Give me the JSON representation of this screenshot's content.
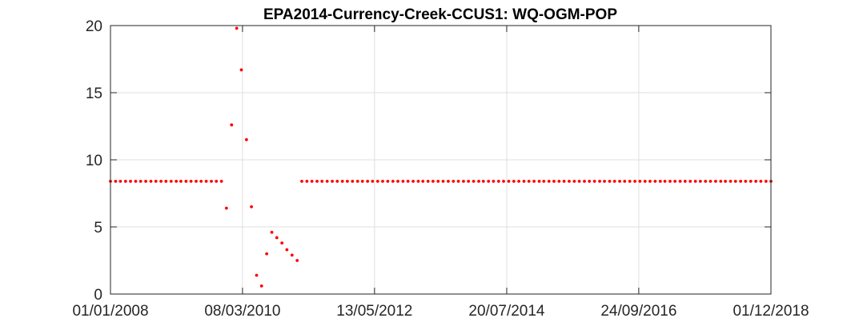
{
  "chart_data": {
    "type": "scatter",
    "title": "EPA2014-Currency-Creek-CCUS1: WQ-OGM-POP",
    "xlabel": "",
    "ylabel": "",
    "x_axis_type": "date",
    "xlim": [
      "2008-01-01",
      "2018-12-01"
    ],
    "ylim": [
      0,
      20
    ],
    "x_ticks": [
      "01/01/2008",
      "08/03/2010",
      "13/05/2012",
      "20/07/2014",
      "24/09/2016",
      "01/12/2018"
    ],
    "y_ticks": [
      0,
      5,
      10,
      15,
      20
    ],
    "grid": true,
    "marker_color": "#ff0000",
    "series": [
      {
        "values": [
          [
            "2008-01-01",
            8.4
          ],
          [
            "2008-02-01",
            8.4
          ],
          [
            "2008-03-01",
            8.4
          ],
          [
            "2008-04-01",
            8.4
          ],
          [
            "2008-05-01",
            8.4
          ],
          [
            "2008-06-01",
            8.4
          ],
          [
            "2008-07-01",
            8.4
          ],
          [
            "2008-08-01",
            8.4
          ],
          [
            "2008-09-01",
            8.4
          ],
          [
            "2008-10-01",
            8.4
          ],
          [
            "2008-11-01",
            8.4
          ],
          [
            "2008-12-01",
            8.4
          ],
          [
            "2009-01-01",
            8.4
          ],
          [
            "2009-02-01",
            8.4
          ],
          [
            "2009-03-01",
            8.4
          ],
          [
            "2009-04-01",
            8.4
          ],
          [
            "2009-05-01",
            8.4
          ],
          [
            "2009-06-01",
            8.4
          ],
          [
            "2009-07-01",
            8.4
          ],
          [
            "2009-08-01",
            8.4
          ],
          [
            "2009-09-01",
            8.4
          ],
          [
            "2009-10-01",
            8.4
          ],
          [
            "2009-11-01",
            8.4
          ],
          [
            "2009-12-01",
            6.4
          ],
          [
            "2010-01-01",
            12.6
          ],
          [
            "2010-02-01",
            19.8
          ],
          [
            "2010-03-01",
            16.7
          ],
          [
            "2010-04-01",
            11.5
          ],
          [
            "2010-05-01",
            6.5
          ],
          [
            "2010-06-01",
            1.4
          ],
          [
            "2010-07-01",
            0.6
          ],
          [
            "2010-08-01",
            3.0
          ],
          [
            "2010-09-01",
            4.6
          ],
          [
            "2010-10-01",
            4.2
          ],
          [
            "2010-11-01",
            3.8
          ],
          [
            "2010-12-01",
            3.3
          ],
          [
            "2011-01-01",
            2.9
          ],
          [
            "2011-02-01",
            2.5
          ],
          [
            "2011-03-01",
            8.4
          ],
          [
            "2011-04-01",
            8.4
          ],
          [
            "2011-05-01",
            8.4
          ],
          [
            "2011-06-01",
            8.4
          ],
          [
            "2011-07-01",
            8.4
          ],
          [
            "2011-08-01",
            8.4
          ],
          [
            "2011-09-01",
            8.4
          ],
          [
            "2011-10-01",
            8.4
          ],
          [
            "2011-11-01",
            8.4
          ],
          [
            "2011-12-01",
            8.4
          ],
          [
            "2012-01-01",
            8.4
          ],
          [
            "2012-02-01",
            8.4
          ],
          [
            "2012-03-01",
            8.4
          ],
          [
            "2012-04-01",
            8.4
          ],
          [
            "2012-05-01",
            8.4
          ],
          [
            "2012-06-01",
            8.4
          ],
          [
            "2012-07-01",
            8.4
          ],
          [
            "2012-08-01",
            8.4
          ],
          [
            "2012-09-01",
            8.4
          ],
          [
            "2012-10-01",
            8.4
          ],
          [
            "2012-11-01",
            8.4
          ],
          [
            "2012-12-01",
            8.4
          ],
          [
            "2013-01-01",
            8.4
          ],
          [
            "2013-02-01",
            8.4
          ],
          [
            "2013-03-01",
            8.4
          ],
          [
            "2013-04-01",
            8.4
          ],
          [
            "2013-05-01",
            8.4
          ],
          [
            "2013-06-01",
            8.4
          ],
          [
            "2013-07-01",
            8.4
          ],
          [
            "2013-08-01",
            8.4
          ],
          [
            "2013-09-01",
            8.4
          ],
          [
            "2013-10-01",
            8.4
          ],
          [
            "2013-11-01",
            8.4
          ],
          [
            "2013-12-01",
            8.4
          ],
          [
            "2014-01-01",
            8.4
          ],
          [
            "2014-02-01",
            8.4
          ],
          [
            "2014-03-01",
            8.4
          ],
          [
            "2014-04-01",
            8.4
          ],
          [
            "2014-05-01",
            8.4
          ],
          [
            "2014-06-01",
            8.4
          ],
          [
            "2014-07-01",
            8.4
          ],
          [
            "2014-08-01",
            8.4
          ],
          [
            "2014-09-01",
            8.4
          ],
          [
            "2014-10-01",
            8.4
          ],
          [
            "2014-11-01",
            8.4
          ],
          [
            "2014-12-01",
            8.4
          ],
          [
            "2015-01-01",
            8.4
          ],
          [
            "2015-02-01",
            8.4
          ],
          [
            "2015-03-01",
            8.4
          ],
          [
            "2015-04-01",
            8.4
          ],
          [
            "2015-05-01",
            8.4
          ],
          [
            "2015-06-01",
            8.4
          ],
          [
            "2015-07-01",
            8.4
          ],
          [
            "2015-08-01",
            8.4
          ],
          [
            "2015-09-01",
            8.4
          ],
          [
            "2015-10-01",
            8.4
          ],
          [
            "2015-11-01",
            8.4
          ],
          [
            "2015-12-01",
            8.4
          ],
          [
            "2016-01-01",
            8.4
          ],
          [
            "2016-02-01",
            8.4
          ],
          [
            "2016-03-01",
            8.4
          ],
          [
            "2016-04-01",
            8.4
          ],
          [
            "2016-05-01",
            8.4
          ],
          [
            "2016-06-01",
            8.4
          ],
          [
            "2016-07-01",
            8.4
          ],
          [
            "2016-08-01",
            8.4
          ],
          [
            "2016-09-01",
            8.4
          ],
          [
            "2016-10-01",
            8.4
          ],
          [
            "2016-11-01",
            8.4
          ],
          [
            "2016-12-01",
            8.4
          ],
          [
            "2017-01-01",
            8.4
          ],
          [
            "2017-02-01",
            8.4
          ],
          [
            "2017-03-01",
            8.4
          ],
          [
            "2017-04-01",
            8.4
          ],
          [
            "2017-05-01",
            8.4
          ],
          [
            "2017-06-01",
            8.4
          ],
          [
            "2017-07-01",
            8.4
          ],
          [
            "2017-08-01",
            8.4
          ],
          [
            "2017-09-01",
            8.4
          ],
          [
            "2017-10-01",
            8.4
          ],
          [
            "2017-11-01",
            8.4
          ],
          [
            "2017-12-01",
            8.4
          ],
          [
            "2018-01-01",
            8.4
          ],
          [
            "2018-02-01",
            8.4
          ],
          [
            "2018-03-01",
            8.4
          ],
          [
            "2018-04-01",
            8.4
          ],
          [
            "2018-05-01",
            8.4
          ],
          [
            "2018-06-01",
            8.4
          ],
          [
            "2018-07-01",
            8.4
          ],
          [
            "2018-08-01",
            8.4
          ],
          [
            "2018-09-01",
            8.4
          ],
          [
            "2018-10-01",
            8.4
          ],
          [
            "2018-11-01",
            8.4
          ],
          [
            "2018-12-01",
            8.4
          ]
        ]
      }
    ]
  }
}
